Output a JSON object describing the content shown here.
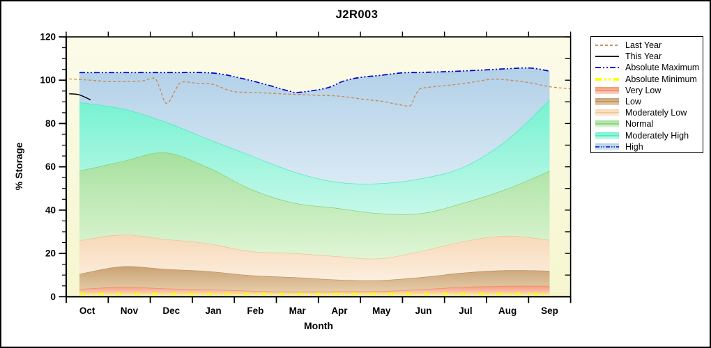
{
  "window": {
    "background": "#ffffff",
    "border_color": "#000000"
  },
  "chart_data": {
    "type": "area",
    "title": "J2R003",
    "xlabel": "Month",
    "ylabel": "% Storage",
    "x_categories": [
      "Oct",
      "Nov",
      "Dec",
      "Jan",
      "Feb",
      "Mar",
      "Apr",
      "May",
      "Jun",
      "Jul",
      "Aug",
      "Sep"
    ],
    "y_axis": {
      "min": 0,
      "max": 120,
      "major_step": 20,
      "minor_step": 5,
      "tick_labels": [
        "0",
        "20",
        "40",
        "60",
        "80",
        "100",
        "120"
      ]
    },
    "plot_background": {
      "top": "#fbfbe9",
      "bottom": "#f6f6cf"
    },
    "grid": false,
    "legend_position": "right",
    "bands_note": "stacked percentile bands, values are band TOP in % storage at each month Oct-Sep",
    "bands": [
      {
        "key": "very_low",
        "name": "Very Low",
        "edge": "#ed8a62",
        "fill_top": "#f49a78",
        "fill_bottom": "#fbd4c4",
        "base": 1.0,
        "values": [
          3.5,
          4.5,
          3.8,
          3.3,
          2.7,
          2.2,
          2.4,
          2.5,
          3.4,
          4.5,
          5.0,
          5.0
        ]
      },
      {
        "key": "low",
        "name": "Low",
        "edge": "#b98f60",
        "fill_top": "#c9a274",
        "fill_bottom": "#e6cdaa",
        "values": [
          10.5,
          14.0,
          12.8,
          11.8,
          9.9,
          9.0,
          7.9,
          7.6,
          9.0,
          11.1,
          12.2,
          12.0
        ]
      },
      {
        "key": "moderately_low",
        "name": "Moderately Low",
        "edge": "#edc193",
        "fill_top": "#f7d9b8",
        "fill_bottom": "#fceede",
        "values": [
          26.0,
          28.6,
          26.6,
          24.6,
          21.0,
          20.1,
          18.7,
          17.6,
          21.1,
          25.6,
          28.1,
          26.2
        ]
      },
      {
        "key": "normal",
        "name": "Normal",
        "edge": "#7ccc74",
        "fill_top": "#a6e09e",
        "fill_bottom": "#e0f6d6",
        "values": [
          58.1,
          62.5,
          66.6,
          59.8,
          49.8,
          43.4,
          41.0,
          38.5,
          38.5,
          43.4,
          49.8,
          58.1
        ]
      },
      {
        "key": "moderately_high",
        "name": "Moderately High",
        "edge": "#3ce8ba",
        "fill_top": "#76f2d1",
        "fill_bottom": "#c6f8e9",
        "values": [
          89.8,
          86.9,
          80.8,
          72.9,
          65.3,
          57.8,
          53.0,
          52.3,
          54.6,
          60.0,
          72.3,
          91.0
        ]
      },
      {
        "key": "high",
        "name": "High",
        "edge": "#0000cd",
        "fill_top": "#b2d0e8",
        "fill_bottom": "#d9eaf4",
        "top_from_line": "absolute_maximum",
        "values": [
          103.5,
          103.5,
          103.5,
          103.2,
          100.3,
          94.4,
          99.0,
          102.2,
          103.6,
          104.3,
          105.3,
          104.2
        ]
      }
    ],
    "series": [
      {
        "key": "last_year",
        "name": "Last Year",
        "type": "line",
        "color": "#c8854d",
        "points": [
          [
            -0.43,
            100.6
          ],
          [
            0,
            100.1
          ],
          [
            0.5,
            99.4
          ],
          [
            1,
            99.4
          ],
          [
            1.35,
            99.8
          ],
          [
            1.6,
            100.9
          ],
          [
            1.72,
            96.5
          ],
          [
            1.85,
            89.8
          ],
          [
            1.97,
            90.6
          ],
          [
            2.1,
            95.5
          ],
          [
            2.25,
            99.1
          ],
          [
            2.6,
            98.6
          ],
          [
            3,
            98.0
          ],
          [
            3.45,
            94.9
          ],
          [
            4,
            94.3
          ],
          [
            4.5,
            93.8
          ],
          [
            5,
            93.4
          ],
          [
            5.5,
            93.0
          ],
          [
            6,
            92.6
          ],
          [
            6.65,
            91.0
          ],
          [
            7,
            90.3
          ],
          [
            7.4,
            88.8
          ],
          [
            7.68,
            88.2
          ],
          [
            7.78,
            92.0
          ],
          [
            7.88,
            95.3
          ],
          [
            8,
            96.4
          ],
          [
            8.5,
            97.5
          ],
          [
            9,
            98.6
          ],
          [
            9.6,
            100.4
          ],
          [
            10,
            100.1
          ],
          [
            10.5,
            98.9
          ],
          [
            11,
            97.0
          ],
          [
            11.5,
            96.0
          ]
        ]
      },
      {
        "key": "this_year",
        "name": "This Year",
        "type": "line",
        "color": "#000000",
        "points": [
          [
            -0.43,
            93.7
          ],
          [
            -0.2,
            93.3
          ],
          [
            0.08,
            90.9
          ]
        ]
      },
      {
        "key": "absolute_maximum",
        "name": "Absolute Maximum",
        "type": "line",
        "color": "#0000cd",
        "points": [
          [
            -0.185,
            103.5
          ],
          [
            1,
            103.5
          ],
          [
            2,
            103.5
          ],
          [
            3,
            103.3
          ],
          [
            3.7,
            100.7
          ],
          [
            4.25,
            98.0
          ],
          [
            4.8,
            95.0
          ],
          [
            5.05,
            94.4
          ],
          [
            5.7,
            96.4
          ],
          [
            6.1,
            99.6
          ],
          [
            6.5,
            101.3
          ],
          [
            7,
            102.3
          ],
          [
            7.5,
            103.4
          ],
          [
            8,
            103.6
          ],
          [
            9,
            104.3
          ],
          [
            10,
            105.3
          ],
          [
            10.55,
            105.6
          ],
          [
            11,
            104.2
          ]
        ]
      },
      {
        "key": "absolute_minimum",
        "name": "Absolute Minimum",
        "type": "line",
        "color": "#ffff00",
        "points": [
          [
            -0.185,
            1.3
          ],
          [
            5.4,
            1.3
          ],
          [
            11,
            1.3
          ]
        ]
      }
    ],
    "legend": {
      "items": [
        {
          "key": "last_year",
          "label": "Last Year",
          "swatch": "line"
        },
        {
          "key": "this_year",
          "label": "This Year",
          "swatch": "line"
        },
        {
          "key": "absolute_maximum",
          "label": "Absolute Maximum",
          "swatch": "line"
        },
        {
          "key": "absolute_minimum",
          "label": "Absolute Minimum",
          "swatch": "line"
        },
        {
          "key": "very_low",
          "label": "Very Low",
          "swatch": "band"
        },
        {
          "key": "low",
          "label": "Low",
          "swatch": "band"
        },
        {
          "key": "moderately_low",
          "label": "Moderately Low",
          "swatch": "band"
        },
        {
          "key": "normal",
          "label": "Normal",
          "swatch": "band"
        },
        {
          "key": "moderately_high",
          "label": "Moderately High",
          "swatch": "band"
        },
        {
          "key": "high",
          "label": "High",
          "swatch": "band-line"
        }
      ]
    }
  }
}
